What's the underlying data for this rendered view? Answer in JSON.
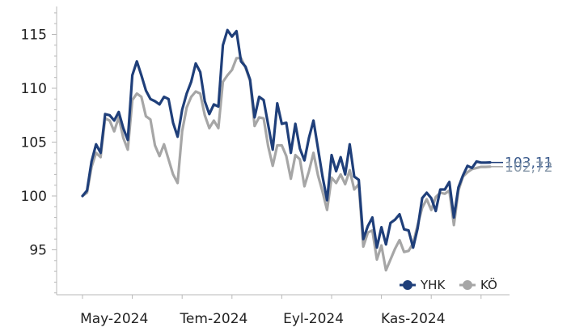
{
  "chart_data": {
    "type": "line",
    "ylim": [
      91,
      117
    ],
    "yticks": [
      95,
      100,
      105,
      110,
      115
    ],
    "xticks": [
      {
        "x": 7,
        "label": "May-2024"
      },
      {
        "x": 29,
        "label": "Tem-2024"
      },
      {
        "x": 51,
        "label": "Eyl-2024"
      },
      {
        "x": 73,
        "label": "Kas-2024"
      }
    ],
    "xlim": [
      -0.5,
      92
    ],
    "grid": false,
    "legend_position": "bottom-right",
    "series": [
      {
        "name": "YHK",
        "color": "#1F3F7A",
        "end_label": "103,11",
        "values": [
          100.0,
          100.5,
          103.2,
          104.8,
          104.0,
          107.6,
          107.5,
          107.0,
          107.8,
          106.3,
          105.2,
          111.2,
          112.5,
          111.2,
          109.8,
          109.0,
          108.8,
          108.5,
          109.2,
          109.0,
          106.8,
          105.5,
          108.0,
          109.5,
          110.6,
          112.3,
          111.5,
          108.8,
          107.6,
          108.5,
          108.3,
          114.0,
          115.4,
          114.8,
          115.3,
          112.5,
          112.0,
          110.8,
          107.3,
          109.2,
          108.9,
          106.6,
          104.3,
          108.6,
          106.7,
          106.8,
          104.0,
          106.7,
          104.4,
          103.3,
          105.4,
          107.0,
          104.4,
          101.8,
          99.6,
          103.8,
          102.3,
          103.6,
          102.0,
          104.8,
          101.8,
          101.5,
          96.0,
          97.2,
          98.0,
          95.2,
          97.1,
          95.5,
          97.5,
          97.8,
          98.3,
          96.9,
          96.8,
          95.2,
          97.0,
          99.8,
          100.3,
          99.8,
          98.6,
          100.6,
          100.6,
          101.3,
          98.0,
          100.8,
          101.9,
          102.8,
          102.6,
          103.2,
          103.1,
          103.1,
          103.11
        ]
      },
      {
        "name": "KÖ",
        "color": "#A6A6A6",
        "end_label": "102,72",
        "values": [
          100.0,
          100.3,
          102.7,
          104.0,
          103.6,
          107.2,
          107.0,
          106.0,
          107.3,
          105.4,
          104.3,
          108.9,
          109.5,
          109.2,
          107.4,
          107.1,
          104.7,
          103.7,
          104.8,
          103.4,
          102.0,
          101.2,
          106.0,
          108.2,
          109.2,
          109.7,
          109.5,
          107.5,
          106.3,
          107.0,
          106.3,
          110.6,
          111.2,
          111.7,
          112.8,
          112.8,
          111.9,
          110.7,
          106.5,
          107.3,
          107.2,
          104.6,
          102.8,
          104.7,
          104.7,
          103.7,
          101.6,
          103.8,
          103.4,
          100.9,
          102.3,
          104.0,
          101.9,
          100.4,
          98.7,
          101.7,
          101.2,
          102.0,
          101.1,
          102.4,
          100.6,
          101.1,
          95.3,
          96.6,
          96.8,
          94.1,
          95.4,
          93.1,
          94.1,
          95.1,
          95.9,
          94.8,
          94.9,
          95.6,
          97.3,
          98.9,
          99.7,
          98.7,
          99.9,
          100.3,
          100.2,
          100.5,
          97.3,
          100.5,
          101.8,
          102.2,
          102.5,
          102.6,
          102.7,
          102.7,
          102.72
        ]
      }
    ]
  }
}
